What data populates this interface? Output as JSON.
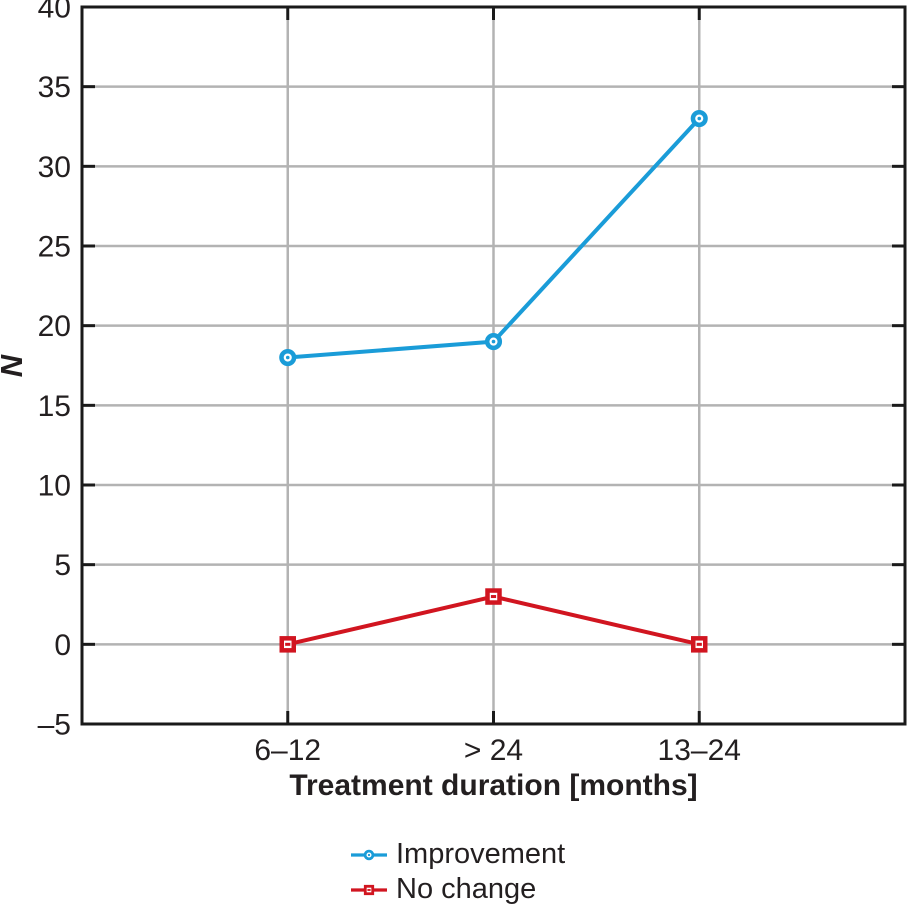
{
  "chart_data": {
    "type": "line",
    "categories": [
      "6–12",
      "> 24",
      "13–24"
    ],
    "series": [
      {
        "name": "Improvement",
        "values": [
          18,
          19,
          33
        ],
        "color": "#1a9cd8",
        "marker": "circle"
      },
      {
        "name": "No change",
        "values": [
          0,
          3,
          0
        ],
        "color": "#d11520",
        "marker": "square"
      }
    ],
    "xlabel": "Treatment duration [months]",
    "ylabel": "N",
    "ylim": [
      -5,
      40
    ],
    "ytick_values": [
      40,
      35,
      30,
      25,
      20,
      15,
      10,
      5,
      0,
      -5
    ],
    "ytick_labels": [
      "40",
      "35",
      "30",
      "25",
      "20",
      "15",
      "10",
      "5",
      "0",
      "–5"
    ],
    "grid": true,
    "legend_position": "bottom"
  },
  "style": {
    "grid_color": "#b3b3b3",
    "axis_color": "#1a1a1a",
    "text_color": "#231f20",
    "background": "#ffffff"
  }
}
